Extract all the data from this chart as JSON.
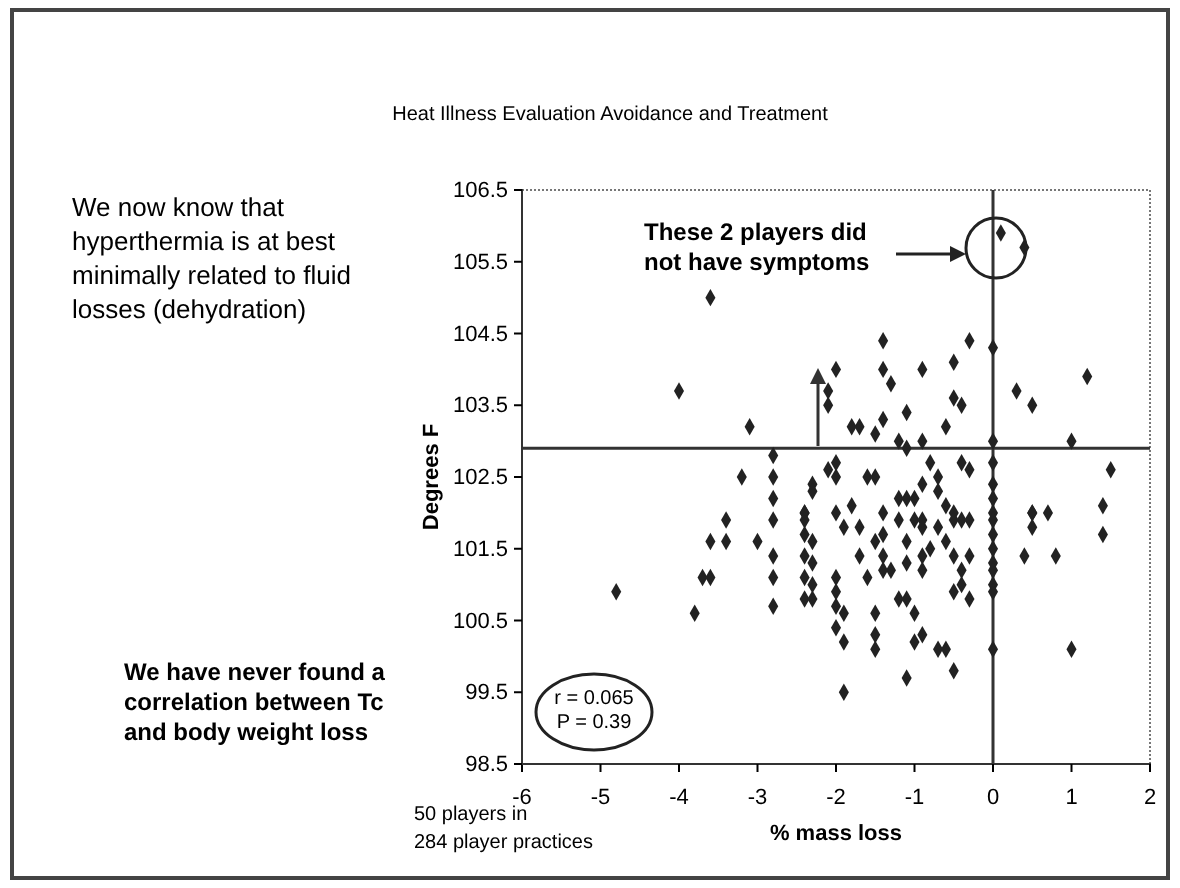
{
  "chart_data": {
    "type": "scatter",
    "title": "Heat Illness Evaluation Avoidance and Treatment",
    "xlabel": "% mass loss",
    "ylabel": "Degrees F",
    "xlim": [
      -6,
      2
    ],
    "ylim": [
      98.5,
      106.5
    ],
    "xticks": [
      -6,
      -5,
      -4,
      -3,
      -2,
      -1,
      0,
      1,
      2
    ],
    "yticks": [
      98.5,
      99.5,
      100.5,
      101.5,
      102.5,
      103.5,
      104.5,
      105.5,
      106.5
    ],
    "grid": false,
    "marker": "diamond",
    "ref_lines": [
      {
        "axis": "x",
        "value": 0,
        "color": "#333333"
      },
      {
        "axis": "y",
        "value": 102.9,
        "color": "#333333"
      }
    ],
    "annotations": [
      "We now know that hyperthermia is at best minimally related  to fluid losses (dehydration)",
      "We have never found a correlation between Tc and body weight loss",
      "r = 0.065",
      "P = 0.39",
      "These 2 players did not have symptoms",
      "50 players in 284 player practices"
    ],
    "series": [
      {
        "color": "#222222",
        "x": [
          -3.6,
          -4.0,
          -3.1,
          -2.1,
          -2.1,
          -2.8,
          -3.2,
          -2.8,
          -2.3,
          -2.3,
          -2.8,
          -3.4,
          -2.8,
          -2.4,
          -2.4,
          -2.0,
          0.1,
          0.4,
          -1.4,
          -0.3,
          0.0,
          -1.4,
          -0.5,
          -0.9,
          -2.0,
          -1.3,
          -0.5,
          -0.4,
          0.3,
          0.5,
          1.2,
          -1.8,
          -1.7,
          -1.4,
          -1.5,
          -1.1,
          -0.6,
          -0.9,
          -1.2,
          -1.1,
          0.0,
          1.0,
          1.5,
          -2.0,
          -1.6,
          -1.5,
          -2.1,
          -0.8,
          -0.7,
          -0.9,
          -0.7,
          -1.2,
          -1.1,
          -1.0,
          -0.4,
          -0.3,
          0.0,
          0.0,
          0.0,
          0.0,
          0.5,
          0.7,
          1.4,
          -0.6,
          -0.5,
          -1.8,
          -2.0,
          -1.4,
          0.0,
          0.0,
          0.0,
          0.0,
          0.0,
          0.0,
          0.0,
          0.0,
          0.5,
          0.5,
          0.4,
          0.8,
          1.4,
          1.0,
          -1.9,
          -1.1,
          -0.5,
          -2.0,
          -2.0,
          -1.9,
          -1.9,
          -1.5,
          -1.5,
          -1.5,
          -1.0,
          -1.0,
          -0.9,
          -0.7,
          -0.6,
          -1.2,
          -1.1,
          -0.5,
          -0.4,
          -0.3,
          -0.4,
          -1.9,
          -1.7,
          -1.5,
          -1.4,
          -1.2,
          -1.0,
          -0.9,
          -0.9,
          -0.7,
          -0.5,
          -0.4,
          -0.3,
          -0.6,
          -0.8,
          -0.9,
          -1.1,
          -1.3,
          -1.4,
          -1.6,
          -1.7,
          -1.4,
          -1.1,
          -0.9,
          -0.5,
          -0.3,
          -2.4,
          -2.4,
          -3.6,
          -3.4,
          -3.0,
          -2.8,
          -2.3,
          -2.4,
          -2.3,
          -3.7,
          -3.6,
          -2.8,
          -2.4,
          -2.3,
          -2.4,
          -2.3,
          -4.8,
          -3.8,
          -2.8,
          -2.0,
          -2.0
        ],
        "values": [
          105.0,
          103.7,
          103.2,
          103.7,
          103.5,
          102.8,
          102.5,
          102.5,
          102.4,
          102.3,
          102.2,
          101.9,
          101.9,
          102.0,
          102.0,
          102.5,
          105.9,
          105.7,
          104.4,
          104.4,
          104.3,
          104.0,
          104.1,
          104.0,
          104.0,
          103.8,
          103.6,
          103.5,
          103.7,
          103.5,
          103.9,
          103.2,
          103.2,
          103.3,
          103.1,
          103.4,
          103.2,
          103.0,
          103.0,
          102.9,
          103.0,
          103.0,
          102.6,
          102.7,
          102.5,
          102.5,
          102.6,
          102.7,
          102.5,
          102.4,
          102.3,
          102.2,
          102.2,
          102.2,
          102.7,
          102.6,
          102.7,
          102.4,
          102.2,
          102.0,
          102.0,
          102.0,
          102.1,
          102.1,
          102.0,
          102.1,
          102.0,
          102.0,
          101.9,
          101.7,
          101.5,
          101.3,
          101.2,
          101.0,
          100.9,
          100.1,
          102.0,
          101.8,
          101.4,
          101.4,
          101.7,
          100.1,
          99.5,
          99.7,
          99.8,
          101.1,
          100.9,
          100.6,
          100.2,
          100.6,
          100.3,
          100.1,
          100.6,
          100.2,
          100.3,
          100.1,
          100.1,
          100.8,
          100.8,
          100.9,
          101.0,
          100.8,
          101.2,
          101.8,
          101.8,
          101.6,
          101.7,
          101.9,
          101.9,
          101.8,
          101.9,
          101.8,
          101.9,
          101.9,
          101.9,
          101.6,
          101.5,
          101.4,
          101.3,
          101.2,
          101.2,
          101.1,
          101.4,
          101.4,
          101.6,
          101.2,
          101.4,
          101.4,
          101.9,
          101.7,
          101.6,
          101.6,
          101.6,
          101.4,
          101.6,
          101.4,
          101.3,
          101.1,
          101.1,
          101.1,
          101.1,
          101.0,
          100.8,
          100.8,
          100.9,
          100.6,
          100.7,
          100.7,
          100.4
        ]
      }
    ]
  }
}
